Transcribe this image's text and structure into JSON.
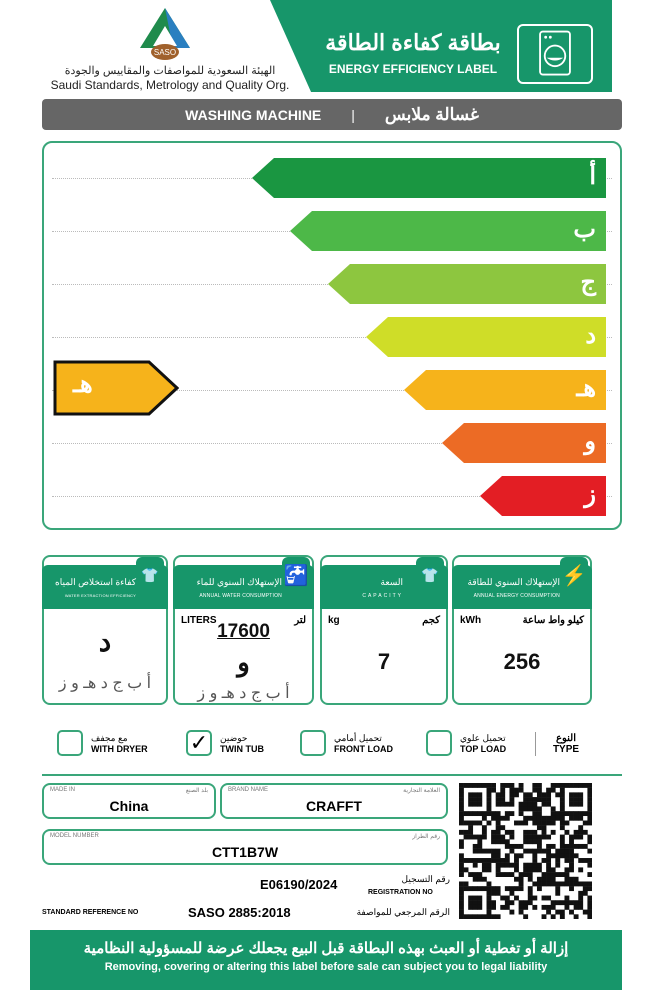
{
  "header": {
    "org_ar": "الهيئة السعودية للمواصفات والمقاييس والجودة",
    "org_en": "Saudi Standards, Metrology and Quality Org.",
    "logo_text": "SASO",
    "title_ar": "بطاقة كفاءة الطاقة",
    "title_en": "ENERGY EFFICIENCY LABEL"
  },
  "product": {
    "en": "WASHING MACHINE",
    "ar": "غسالة ملابس"
  },
  "scale": {
    "classes": [
      "أ",
      "ب",
      "ج",
      "د",
      "هـ",
      "و",
      "ز"
    ],
    "colors": [
      "#1a9641",
      "#4db848",
      "#8dc63f",
      "#cfdd28",
      "#f6b31b",
      "#ec6b25",
      "#e31e24"
    ],
    "rated_class": "هـ",
    "rated_color": "#f6b31b"
  },
  "info": {
    "energy": {
      "ar": "الإستهلاك السنوي للطاقة",
      "en": "ANNUAL ENERGY CONSUMPTION",
      "unit_en": "kWh",
      "unit_ar": "كيلو واط ساعة",
      "value": "256"
    },
    "capacity": {
      "ar": "السعة",
      "en": "CAPACITY",
      "unit_en": "kg",
      "unit_ar": "كجم",
      "value": "7"
    },
    "water": {
      "ar": "الإستهلاك السنوي للماء",
      "en": "ANNUAL WATER CONSUMPTION",
      "unit_en": "LITERS",
      "unit_ar": "لتر",
      "value": "17600",
      "class": "و",
      "scale": "أ ب ج د هـ و ز"
    },
    "extraction": {
      "ar": "كفاءة استخلاص المياه",
      "en": "WATER EXTRACTION EFFICIENCY",
      "class": "د",
      "scale": "أ ب ج د هـ و ز"
    }
  },
  "type": {
    "label_ar": "النوع",
    "label_en": "TYPE",
    "options": [
      {
        "ar": "تحميل علوي",
        "en": "TOP LOAD",
        "checked": false
      },
      {
        "ar": "تحميل أمامي",
        "en": "FRONT LOAD",
        "checked": false
      },
      {
        "ar": "حوضين",
        "en": "TWIN TUB",
        "checked": true
      },
      {
        "ar": "مع مجفف",
        "en": "WITH DRYER",
        "checked": false
      }
    ],
    "check": "✓"
  },
  "fields": {
    "made_in": {
      "en": "MADE IN",
      "ar": "بلد الصنع",
      "value": "China"
    },
    "brand": {
      "en": "BRAND NAME",
      "ar": "العلامة التجارية",
      "value": "CRAFFT"
    },
    "model": {
      "en": "MODEL NUMBER",
      "ar": "رقم الطراز",
      "value": "CTT1B7W"
    },
    "registration": {
      "ar": "رقم التسجيل",
      "en": "REGISTRATION NO",
      "value": "E06190/2024"
    },
    "standard": {
      "en": "STANDARD REFERENCE NO",
      "ar": "الرقم المرجعي للمواصفة",
      "value": "SASO 2885:2018"
    }
  },
  "footer": {
    "ar": "إزالة أو تغطية أو العبث بهذه البطاقة قبل البيع يجعلك عرضة للمسؤولية النظامية",
    "en": "Removing, covering or altering this label before sale can subject you to legal liability"
  }
}
